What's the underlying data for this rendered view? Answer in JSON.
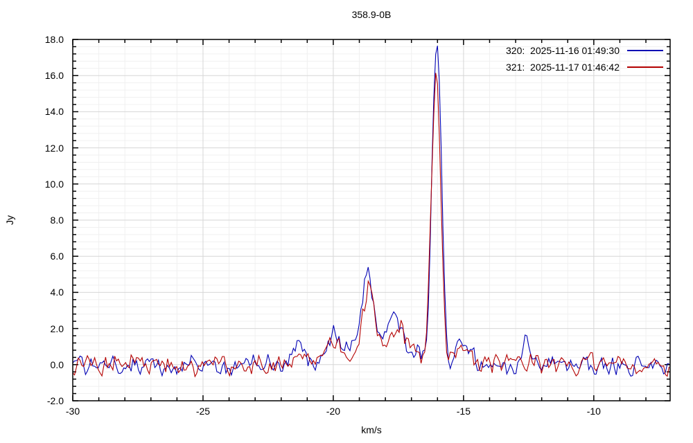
{
  "window": {
    "background": "#ffffff"
  },
  "chart_data": {
    "type": "line",
    "title": "358.9-0B",
    "xlabel": "km/s",
    "ylabel": "Jy",
    "xlim": [
      -30.0,
      -7.07
    ],
    "ylim": [
      -2.0,
      18.0
    ],
    "x_major_ticks": [
      -30,
      -25,
      -20,
      -15,
      -10
    ],
    "x_minor_step": 1.0,
    "y_major_ticks": [
      -2.0,
      0.0,
      2.0,
      4.0,
      6.0,
      8.0,
      10.0,
      12.0,
      14.0,
      16.0,
      18.0
    ],
    "y_minor_step": 0.4,
    "grid": "major+minor",
    "legend_position": "top-right-inside",
    "axis_color": "#000000",
    "major_grid_color": "#d6d6d6",
    "minor_grid_color": "#f0f0f0",
    "sample_step_kms": 0.07,
    "noise_amp_jy": 0.7,
    "series": [
      {
        "id": "320",
        "label": "320:  2025-11-16 01:49:30",
        "color": "#0000b4",
        "seed": 20251116,
        "main_peak_jy": 17.9,
        "main_peak_kms": -16.0,
        "peaks": [
          {
            "center": -21.35,
            "sigma": 0.22,
            "amp": 1.05
          },
          {
            "center": -20.0,
            "sigma": 0.3,
            "amp": 1.2
          },
          {
            "center": -19.2,
            "sigma": 0.55,
            "amp": 0.7
          },
          {
            "center": -18.68,
            "sigma": 0.24,
            "amp": 4.6
          },
          {
            "center": -18.05,
            "sigma": 0.4,
            "amp": 0.6
          },
          {
            "center": -17.6,
            "sigma": 0.3,
            "amp": 2.2
          },
          {
            "center": -16.75,
            "sigma": 0.13,
            "amp": 0.8
          },
          {
            "center": -16.03,
            "sigma": 0.18,
            "amp": 17.8
          },
          {
            "center": -15.0,
            "sigma": 0.22,
            "amp": 1.2
          },
          {
            "center": -12.62,
            "sigma": 0.13,
            "amp": 1.4
          }
        ]
      },
      {
        "id": "321",
        "label": "321:  2025-11-17 01:46:42",
        "color": "#b40000",
        "seed": 20251117,
        "main_peak_jy": 16.1,
        "main_peak_kms": -16.0,
        "peaks": [
          {
            "center": -21.25,
            "sigma": 0.22,
            "amp": 0.8
          },
          {
            "center": -20.0,
            "sigma": 0.3,
            "amp": 1.0
          },
          {
            "center": -19.2,
            "sigma": 0.55,
            "amp": 0.6
          },
          {
            "center": -18.63,
            "sigma": 0.23,
            "amp": 3.8
          },
          {
            "center": -17.5,
            "sigma": 0.32,
            "amp": 2.3
          },
          {
            "center": -16.8,
            "sigma": 0.15,
            "amp": 0.5
          },
          {
            "center": -16.05,
            "sigma": 0.18,
            "amp": 16.0
          },
          {
            "center": -15.0,
            "sigma": 0.22,
            "amp": 1.1
          }
        ]
      }
    ]
  }
}
